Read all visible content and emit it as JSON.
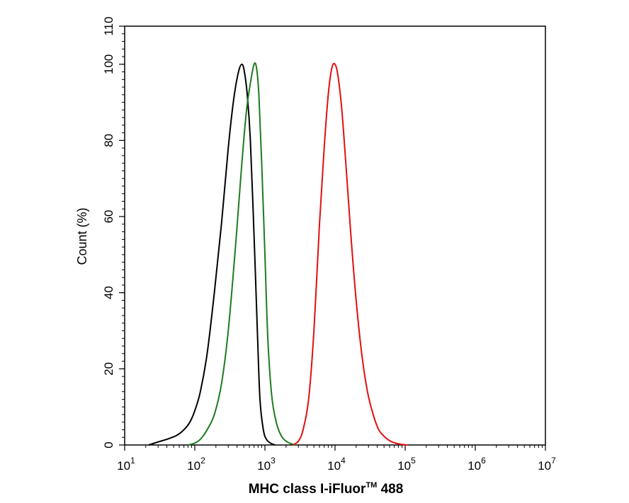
{
  "chart_data": {
    "type": "line",
    "title": "",
    "xlabel": "MHC class I-iFluor™ 488",
    "xlabel_main": "MHC class I-iFluor",
    "xlabel_tm": "TM",
    "xlabel_tail": " 488",
    "ylabel": "Count  (%)",
    "x_scale": "log",
    "xlim": [
      10,
      10000000
    ],
    "ylim": [
      0,
      110
    ],
    "grid": false,
    "legend": "none",
    "x_ticks": [
      {
        "base": "10",
        "exp": "1",
        "value": 10
      },
      {
        "base": "10",
        "exp": "2",
        "value": 100
      },
      {
        "base": "10",
        "exp": "3",
        "value": 1000
      },
      {
        "base": "10",
        "exp": "4",
        "value": 10000
      },
      {
        "base": "10",
        "exp": "5",
        "value": 100000
      },
      {
        "base": "10",
        "exp": "6",
        "value": 1000000
      },
      {
        "base": "10",
        "exp": "7",
        "value": 10000000
      }
    ],
    "y_ticks": [
      "0",
      "20",
      "40",
      "60",
      "80",
      "100",
      "110"
    ],
    "y_tick_values": [
      0,
      20,
      40,
      60,
      80,
      100,
      110
    ],
    "series": [
      {
        "name": "black",
        "color": "#000000",
        "x": [
          22,
          30,
          40,
          55,
          70,
          85,
          100,
          120,
          150,
          190,
          240,
          300,
          360,
          420,
          470,
          510,
          560,
          620,
          700,
          780,
          850,
          950,
          1050,
          1200,
          1400
        ],
        "y": [
          0,
          0.8,
          1.5,
          2.5,
          4,
          6,
          9,
          14,
          24,
          40,
          58,
          78,
          91,
          98,
          100,
          98,
          92,
          80,
          55,
          30,
          12,
          4,
          1.5,
          0.5,
          0
        ]
      },
      {
        "name": "green",
        "color": "#1e7b1e",
        "x": [
          80,
          100,
          120,
          150,
          190,
          240,
          300,
          380,
          460,
          540,
          620,
          700,
          760,
          820,
          900,
          1000,
          1100,
          1250,
          1450,
          1700,
          2000,
          2400,
          2800
        ],
        "y": [
          0,
          0.5,
          1.5,
          4,
          8,
          16,
          30,
          52,
          72,
          87,
          95,
          100,
          99,
          92,
          74,
          50,
          28,
          13,
          6,
          2.5,
          1,
          0.3,
          0
        ]
      },
      {
        "name": "red",
        "color": "#e01010",
        "x": [
          2500,
          3000,
          3500,
          4200,
          5000,
          6000,
          7000,
          8000,
          9000,
          10000,
          11000,
          12500,
          14500,
          17000,
          20000,
          24000,
          29000,
          35000,
          42000,
          52000,
          65000,
          85000,
          110000
        ],
        "y": [
          0,
          1,
          4,
          12,
          30,
          58,
          78,
          92,
          99,
          100,
          97,
          88,
          72,
          54,
          38,
          24,
          14,
          8,
          4,
          2,
          0.8,
          0.2,
          0
        ]
      }
    ]
  }
}
